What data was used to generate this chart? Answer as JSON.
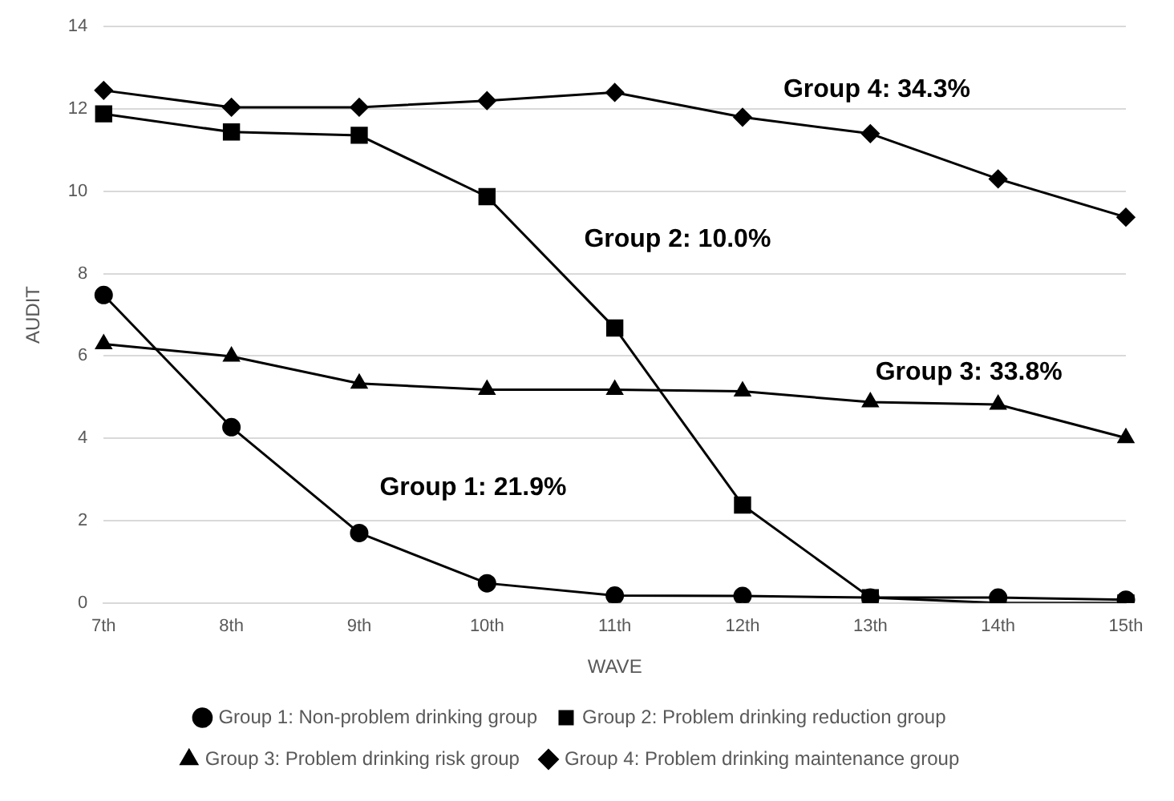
{
  "chart_data": {
    "type": "line",
    "xlabel": "WAVE",
    "ylabel": "AUDIT",
    "categories": [
      "7th",
      "8th",
      "9th",
      "10th",
      "11th",
      "12th",
      "13th",
      "14th",
      "15th"
    ],
    "ylim": [
      0,
      14
    ],
    "yticks": [
      0,
      2,
      4,
      6,
      8,
      10,
      12,
      14
    ],
    "grid": "y",
    "legend": "bottom",
    "series": [
      {
        "name": "Group 1: Non-problem drinking group",
        "color": "#000000",
        "marker": "circle",
        "values": [
          7.48,
          4.27,
          1.7,
          0.48,
          0.18,
          0.17,
          0.13,
          0.13,
          0.08
        ]
      },
      {
        "name": "Group 2: Problem drinking reduction group",
        "color": "#000000",
        "marker": "square",
        "values": [
          11.88,
          11.44,
          11.36,
          9.87,
          6.68,
          2.38,
          0.13,
          0,
          0
        ]
      },
      {
        "name": "Group 3: Problem drinking risk group",
        "color": "#000000",
        "marker": "triangle",
        "values": [
          6.29,
          5.99,
          5.33,
          5.18,
          5.18,
          5.14,
          4.88,
          4.82,
          4.01
        ]
      },
      {
        "name": "Group 4: Problem drinking maintenance group",
        "color": "#000000",
        "marker": "diamond",
        "values": [
          12.45,
          12.04,
          12.04,
          12.2,
          12.4,
          11.8,
          11.4,
          10.3,
          9.37
        ]
      }
    ],
    "annotations": [
      "Group 1: 21.9%",
      "Group 2: 10.0%",
      "Group 3: 33.8%",
      "Group 4: 34.3%"
    ]
  }
}
